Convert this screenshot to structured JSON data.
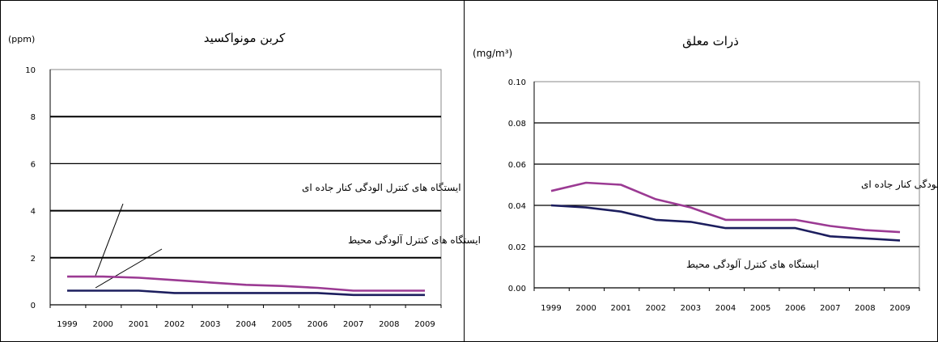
{
  "chart_data": [
    {
      "type": "line",
      "title": "کربن مونواکسید",
      "unit_label": "(ppm)",
      "x": [
        "1999",
        "2000",
        "2001",
        "2002",
        "2003",
        "2004",
        "2005",
        "2006",
        "2007",
        "2008",
        "2009"
      ],
      "yticks": [
        "0",
        "2",
        "4",
        "6",
        "8",
        "10"
      ],
      "ylim": [
        0,
        10
      ],
      "grid": true,
      "series": [
        {
          "name": "ایستگاه های کنترل الودگی کنار جاده ای",
          "color": "#9b3a93",
          "values": [
            1.2,
            1.2,
            1.15,
            1.05,
            0.95,
            0.85,
            0.8,
            0.72,
            0.6,
            0.6,
            0.6
          ]
        },
        {
          "name": "ایستگاه های کنترل آلودگی محیط",
          "color": "#1c1e5e",
          "values": [
            0.6,
            0.6,
            0.6,
            0.5,
            0.5,
            0.5,
            0.5,
            0.5,
            0.42,
            0.42,
            0.42
          ]
        }
      ]
    },
    {
      "type": "line",
      "title": "ذرات معلق",
      "unit_label": "(mg/m³)",
      "x": [
        "1999",
        "2000",
        "2001",
        "2002",
        "2003",
        "2004",
        "2005",
        "2006",
        "2007",
        "2008",
        "2009"
      ],
      "yticks": [
        "0.00",
        "0.02",
        "0.04",
        "0.06",
        "0.08",
        "0.10"
      ],
      "ylim": [
        0,
        0.1
      ],
      "grid": true,
      "series": [
        {
          "name": "ایستگاه های کنترل الودگی کنار جاده ای",
          "color": "#9b3a93",
          "values": [
            0.047,
            0.051,
            0.05,
            0.043,
            0.039,
            0.033,
            0.033,
            0.033,
            0.03,
            0.028,
            0.027
          ]
        },
        {
          "name": "ایستگاه های کنترل آلودگی محیط",
          "color": "#1c1e5e",
          "values": [
            0.04,
            0.039,
            0.037,
            0.033,
            0.032,
            0.029,
            0.029,
            0.029,
            0.025,
            0.024,
            0.023
          ]
        }
      ]
    }
  ]
}
